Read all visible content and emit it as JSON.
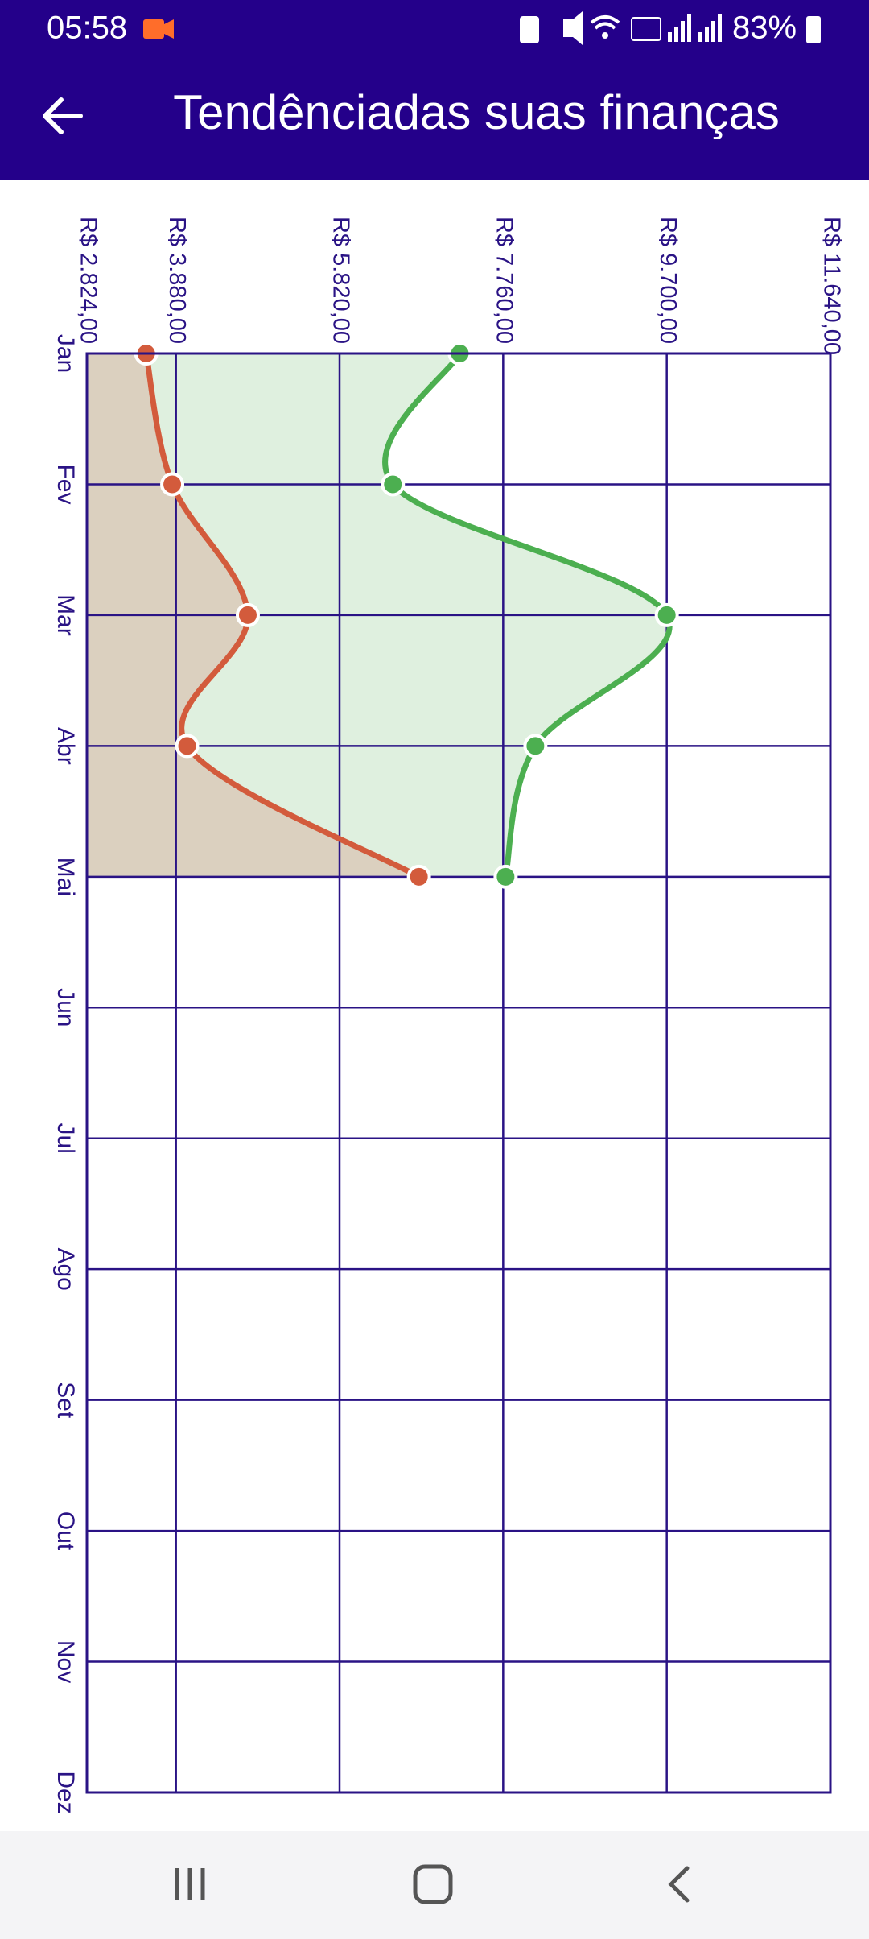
{
  "status_bar": {
    "time": "05:58",
    "battery": "83%"
  },
  "app_bar": {
    "title": "Tendênciadas suas finanças"
  },
  "chart_data": {
    "type": "line",
    "categories": [
      "Jan",
      "Fev",
      "Mar",
      "Abr",
      "Mai",
      "Jun",
      "Jul",
      "Ago",
      "Set",
      "Out",
      "Nov",
      "Dez"
    ],
    "series": [
      {
        "color": "#4caf50",
        "area_color": "#dff0df",
        "values": [
          7246,
          6452,
          9700,
          8142,
          7789,
          null,
          null,
          null,
          null,
          null,
          null,
          null
        ]
      },
      {
        "color": "#d35b3c",
        "area_color": "#dbd0bf",
        "values": [
          3527,
          3836,
          4732,
          4012,
          6761,
          null,
          null,
          null,
          null,
          null,
          null,
          null
        ]
      }
    ],
    "ylim": [
      2824,
      11640
    ],
    "yticks": [
      {
        "value": 2824,
        "label": "R$ 2.824,00"
      },
      {
        "value": 3880,
        "label": "R$ 3.880,00"
      },
      {
        "value": 5820,
        "label": "R$ 5.820,00"
      },
      {
        "value": 7760,
        "label": "R$ 7.760,00"
      },
      {
        "value": 9700,
        "label": "R$ 9.700,00"
      },
      {
        "value": 11640,
        "label": "R$ 11.640,00"
      }
    ],
    "grid": true,
    "orientation": "vertical-categories"
  }
}
